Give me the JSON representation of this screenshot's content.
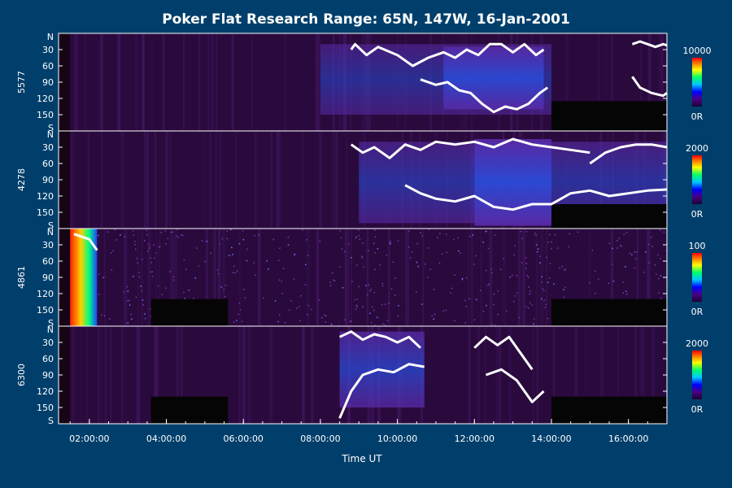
{
  "chart_data": {
    "type": "heatmap",
    "title": "Poker Flat Research Range: 65N, 147W, 16-Jan-2001",
    "xlabel": "Time UT",
    "x_ticks": [
      "02:00:00",
      "04:00:00",
      "06:00:00",
      "08:00:00",
      "10:00:00",
      "12:00:00",
      "14:00:00",
      "16:00:00"
    ],
    "x_tick_hours": [
      2,
      4,
      6,
      8,
      10,
      12,
      14,
      16
    ],
    "xlim_hours": [
      1.2,
      17.0
    ],
    "y_ticks": [
      "N",
      "30",
      "60",
      "90",
      "120",
      "150",
      "S"
    ],
    "y_tick_values": [
      0,
      30,
      60,
      90,
      120,
      150,
      180
    ],
    "ylim": [
      0,
      180
    ],
    "colorbar_min_label": "0R",
    "panels": [
      {
        "label": "5577",
        "colorbar_max": "10000",
        "data_start_hour": 1.5,
        "data_end_hour": 17.0,
        "no_data_blocks": [
          {
            "start_hour": 14.0,
            "end_hour": 17.0,
            "lat_from": 125,
            "lat_to": 180
          }
        ],
        "activity": [
          {
            "start_hour": 8.0,
            "end_hour": 14.0,
            "lat_from": 20,
            "lat_to": 150,
            "level": 0.25
          },
          {
            "start_hour": 11.2,
            "end_hour": 13.8,
            "lat_from": 25,
            "lat_to": 140,
            "level": 0.55
          }
        ],
        "contours": [
          {
            "hours": [
              8.8,
              8.9,
              9.2,
              9.5,
              10.0,
              10.4,
              10.8,
              11.2,
              11.5,
              11.8,
              12.1,
              12.4,
              12.7,
              13.0,
              13.3,
              13.6,
              13.8
            ],
            "lat": [
              30,
              20,
              40,
              25,
              40,
              60,
              45,
              35,
              45,
              30,
              40,
              20,
              20,
              35,
              20,
              40,
              30
            ]
          },
          {
            "hours": [
              10.6,
              11.0,
              11.3,
              11.6,
              11.9,
              12.2,
              12.5,
              12.8,
              13.1,
              13.4,
              13.7,
              13.9
            ],
            "lat": [
              85,
              95,
              90,
              105,
              110,
              130,
              145,
              135,
              140,
              130,
              110,
              100
            ]
          },
          {
            "hours": [
              16.1,
              16.3,
              16.5,
              16.7,
              16.9,
              17.0
            ],
            "lat": [
              20,
              15,
              20,
              25,
              20,
              22
            ]
          },
          {
            "hours": [
              16.1,
              16.3,
              16.6,
              16.9,
              17.0
            ],
            "lat": [
              80,
              100,
              110,
              115,
              110
            ]
          }
        ]
      },
      {
        "label": "4278",
        "colorbar_max": "2000",
        "data_start_hour": 1.5,
        "data_end_hour": 17.0,
        "no_data_blocks": [
          {
            "start_hour": 14.0,
            "end_hour": 17.0,
            "lat_from": 135,
            "lat_to": 180
          }
        ],
        "activity": [
          {
            "start_hour": 9.0,
            "end_hour": 17.0,
            "lat_from": 20,
            "lat_to": 170,
            "level": 0.3
          },
          {
            "start_hour": 12.0,
            "end_hour": 14.0,
            "lat_from": 15,
            "lat_to": 175,
            "level": 0.6
          }
        ],
        "contours": [
          {
            "hours": [
              8.8,
              9.1,
              9.4,
              9.8,
              10.2,
              10.6,
              11.0,
              11.5,
              12.0,
              12.5,
              13.0,
              13.5,
              14.0,
              14.5,
              15.0
            ],
            "lat": [
              25,
              40,
              30,
              50,
              25,
              35,
              20,
              25,
              20,
              30,
              15,
              25,
              30,
              35,
              40
            ]
          },
          {
            "hours": [
              10.2,
              10.6,
              11.0,
              11.5,
              12.0,
              12.5,
              13.0,
              13.5,
              14.0,
              14.5,
              15.0,
              15.5,
              16.0,
              16.5,
              17.0
            ],
            "lat": [
              100,
              115,
              125,
              130,
              120,
              140,
              145,
              135,
              135,
              115,
              110,
              120,
              115,
              110,
              108
            ]
          },
          {
            "hours": [
              15.0,
              15.4,
              15.8,
              16.2,
              16.6,
              17.0
            ],
            "lat": [
              60,
              40,
              30,
              25,
              25,
              30
            ]
          }
        ]
      },
      {
        "label": "4861",
        "colorbar_max": "100",
        "data_start_hour": 1.5,
        "data_end_hour": 17.0,
        "no_data_blocks": [
          {
            "start_hour": 3.6,
            "end_hour": 5.6,
            "lat_from": 130,
            "lat_to": 180
          },
          {
            "start_hour": 14.0,
            "end_hour": 17.0,
            "lat_from": 130,
            "lat_to": 180
          }
        ],
        "activity": [
          {
            "start_hour": 1.5,
            "end_hour": 2.2,
            "lat_from": 0,
            "lat_to": 180,
            "level": 0.95
          }
        ],
        "contours": [
          {
            "hours": [
              1.6,
              1.8,
              2.0,
              2.2
            ],
            "lat": [
              10,
              15,
              20,
              40
            ]
          }
        ]
      },
      {
        "label": "6300",
        "colorbar_max": "2000",
        "data_start_hour": 1.5,
        "data_end_hour": 17.0,
        "no_data_blocks": [
          {
            "start_hour": 3.6,
            "end_hour": 5.6,
            "lat_from": 130,
            "lat_to": 180
          },
          {
            "start_hour": 14.0,
            "end_hour": 17.0,
            "lat_from": 130,
            "lat_to": 180
          }
        ],
        "activity": [
          {
            "start_hour": 8.5,
            "end_hour": 10.7,
            "lat_from": 10,
            "lat_to": 150,
            "level": 0.45
          }
        ],
        "contours": [
          {
            "hours": [
              8.5,
              8.8,
              9.1,
              9.4,
              9.7,
              10.0,
              10.3,
              10.6
            ],
            "lat": [
              20,
              10,
              25,
              15,
              20,
              30,
              20,
              40
            ]
          },
          {
            "hours": [
              8.5,
              8.8,
              9.1,
              9.5,
              9.9,
              10.3,
              10.7
            ],
            "lat": [
              170,
              120,
              90,
              80,
              85,
              70,
              75
            ]
          },
          {
            "hours": [
              12.0,
              12.3,
              12.6,
              12.9,
              13.2,
              13.5
            ],
            "lat": [
              40,
              20,
              35,
              20,
              50,
              80
            ]
          },
          {
            "hours": [
              12.3,
              12.7,
              13.1,
              13.5,
              13.8
            ],
            "lat": [
              90,
              80,
              100,
              140,
              120
            ]
          }
        ]
      }
    ]
  }
}
